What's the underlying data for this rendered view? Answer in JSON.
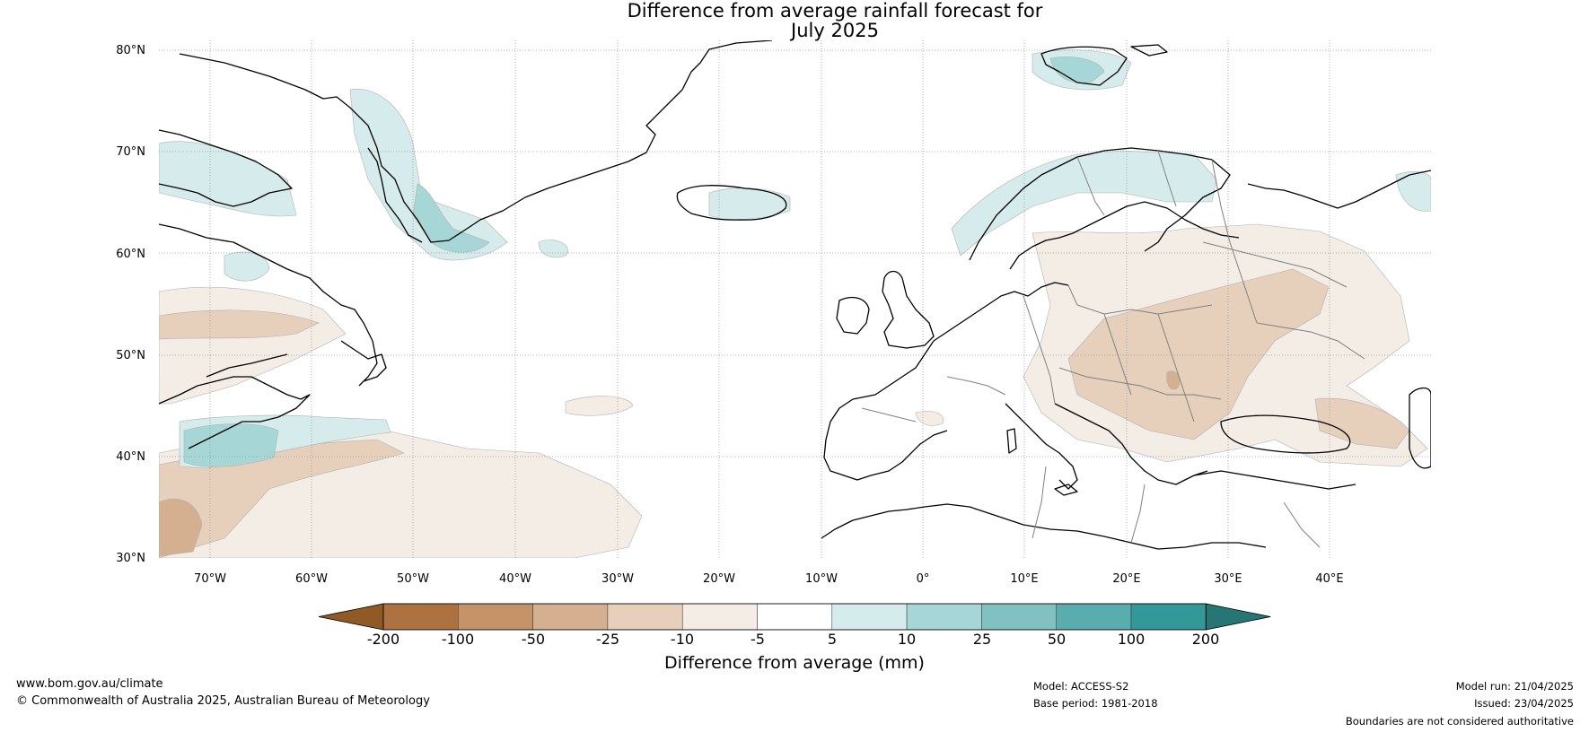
{
  "title": {
    "line1": "Difference from average rainfall forecast for",
    "line2": "July 2025"
  },
  "map": {
    "lat_labels": [
      "80°N",
      "70°N",
      "60°N",
      "50°N",
      "40°N",
      "30°N"
    ],
    "lon_labels": [
      "70°W",
      "60°W",
      "50°W",
      "40°W",
      "30°W",
      "20°W",
      "10°W",
      "0°",
      "10°E",
      "20°E",
      "30°E",
      "40°E"
    ],
    "colors": {
      "land_outline": "#000000",
      "borders": "#808080",
      "grid": "#999999",
      "dry_light": "#f3ede6",
      "dry_med": "#e6d0bc",
      "wet_light": "#d6ecec",
      "wet_med": "#a7d6d6"
    }
  },
  "colorbar": {
    "title": "Difference from average (mm)",
    "tick_labels": [
      "-200",
      "-100",
      "-50",
      "-25",
      "-10",
      "-5",
      "5",
      "10",
      "25",
      "50",
      "100",
      "200"
    ],
    "colors": [
      "#8f5a25",
      "#ad7240",
      "#c49468",
      "#d4b090",
      "#e6d0bc",
      "#f3ede6",
      "#ffffff",
      "#d6ecec",
      "#a7d6d6",
      "#81c1c1",
      "#5aadad",
      "#339898",
      "#267676"
    ]
  },
  "footer": {
    "url": "www.bom.gov.au/climate",
    "copyright": "© Commonwealth of Australia 2025, Australian Bureau of Meteorology",
    "model": "Model: ACCESS-S2",
    "base_period": "Base period: 1981-2018",
    "model_run": "Model run: 21/04/2025",
    "issued": "Issued: 23/04/2025",
    "disclaimer": "Boundaries are not considered authoritative"
  }
}
